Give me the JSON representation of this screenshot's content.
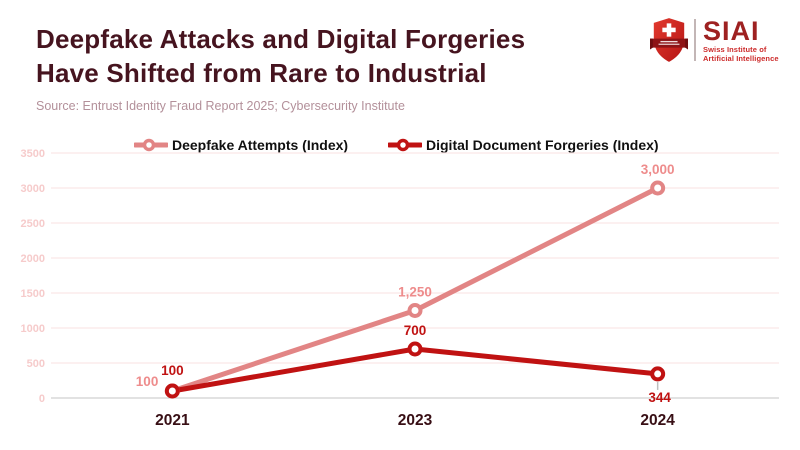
{
  "header": {
    "title_line1": "Deepfake Attacks and Digital Forgeries",
    "title_line2": "Have Shifted from Rare to Industrial",
    "source": "Source: Entrust Identity Fraud Report 2025; Cybersecurity Institute"
  },
  "logo": {
    "acronym": "SIAI",
    "name_line1": "Swiss Institute of",
    "name_line2": "Artificial Intelligence"
  },
  "chart_data": {
    "type": "line",
    "title": "Deepfake Attacks and Digital Forgeries Have Shifted from Rare to Industrial",
    "categories": [
      "2021",
      "2023",
      "2024"
    ],
    "series": [
      {
        "name": "Deepfake Attempts (Index)",
        "values": [
          100,
          1250,
          3000
        ],
        "labels": [
          "100",
          "1,250",
          "3,000"
        ],
        "color": "#e28585",
        "label_color": "#ee8c8c"
      },
      {
        "name": "Digital Document Forgeries (Index)",
        "values": [
          100,
          700,
          344
        ],
        "labels": [
          "100",
          "700",
          "344"
        ],
        "color": "#c01212",
        "label_color": "#c01212"
      }
    ],
    "xlabel": "",
    "ylabel": "",
    "ylim": [
      0,
      3500
    ],
    "yticks": [
      "0",
      "500",
      "1000",
      "1500",
      "2000",
      "2500",
      "3000",
      "3500"
    ],
    "grid": true,
    "legend_position": "top",
    "colors": {
      "gridline": "#fbe7e7",
      "zero_line": "#d8d8d8",
      "ytick_label": "#f6cbcb",
      "xtick_label": "#380f15",
      "title": "#46141f",
      "source": "#b3909a"
    }
  }
}
